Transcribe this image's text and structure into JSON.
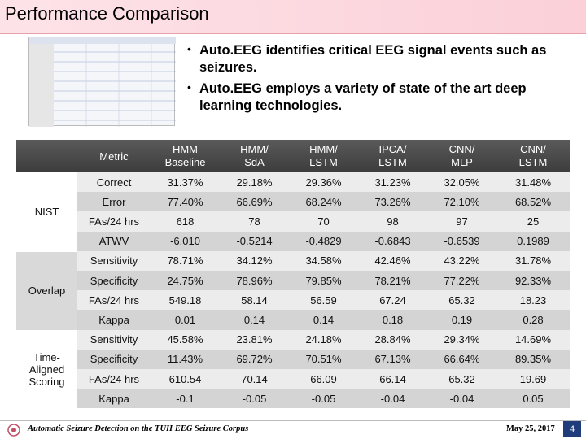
{
  "header": {
    "title": "Performance Comparison"
  },
  "bullets": [
    "Auto.EEG identifies critical EEG signal events such as seizures.",
    "Auto.EEG employs a variety of state of the art deep learning technologies."
  ],
  "table": {
    "metric_header": "Metric",
    "columns": [
      [
        "HMM",
        "Baseline"
      ],
      [
        "HMM/",
        "SdA"
      ],
      [
        "HMM/",
        "LSTM"
      ],
      [
        "IPCA/",
        "LSTM"
      ],
      [
        "CNN/",
        "MLP"
      ],
      [
        "CNN/",
        "LSTM"
      ]
    ],
    "groups": [
      {
        "name": "NIST",
        "rows": [
          {
            "metric": "Correct",
            "values": [
              "31.37%",
              "29.18%",
              "29.36%",
              "31.23%",
              "32.05%",
              "31.48%"
            ]
          },
          {
            "metric": "Error",
            "values": [
              "77.40%",
              "66.69%",
              "68.24%",
              "73.26%",
              "72.10%",
              "68.52%"
            ]
          },
          {
            "metric": "FAs/24 hrs",
            "values": [
              "618",
              "78",
              "70",
              "98",
              "97",
              "25"
            ]
          },
          {
            "metric": "ATWV",
            "values": [
              "-6.010",
              "-0.5214",
              "-0.4829",
              "-0.6843",
              "-0.6539",
              "0.1989"
            ]
          }
        ]
      },
      {
        "name": "Overlap",
        "rows": [
          {
            "metric": "Sensitivity",
            "values": [
              "78.71%",
              "34.12%",
              "34.58%",
              "42.46%",
              "43.22%",
              "31.78%"
            ]
          },
          {
            "metric": "Specificity",
            "values": [
              "24.75%",
              "78.96%",
              "79.85%",
              "78.21%",
              "77.22%",
              "92.33%"
            ]
          },
          {
            "metric": "FAs/24 hrs",
            "values": [
              "549.18",
              "58.14",
              "56.59",
              "67.24",
              "65.32",
              "18.23"
            ]
          },
          {
            "metric": "Kappa",
            "values": [
              "0.01",
              "0.14",
              "0.14",
              "0.18",
              "0.19",
              "0.28"
            ]
          }
        ]
      },
      {
        "name": "Time-Aligned Scoring",
        "rows": [
          {
            "metric": "Sensitivity",
            "values": [
              "45.58%",
              "23.81%",
              "24.18%",
              "28.84%",
              "29.34%",
              "14.69%"
            ]
          },
          {
            "metric": "Specificity",
            "values": [
              "11.43%",
              "69.72%",
              "70.51%",
              "67.13%",
              "66.64%",
              "89.35%"
            ]
          },
          {
            "metric": "FAs/24 hrs",
            "values": [
              "610.54",
              "70.14",
              "66.09",
              "66.14",
              "65.32",
              "19.69"
            ]
          },
          {
            "metric": "Kappa",
            "values": [
              "-0.1",
              "-0.05",
              "-0.05",
              "-0.04",
              "-0.04",
              "0.05"
            ]
          }
        ]
      }
    ]
  },
  "footer": {
    "caption": "Automatic Seizure Detection on the TUH EEG Seizure Corpus",
    "date": "May 25, 2017",
    "page": "4"
  }
}
